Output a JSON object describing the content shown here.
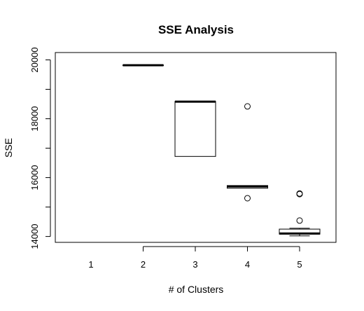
{
  "chart_data": {
    "type": "boxplot",
    "title": "SSE Analysis",
    "xlabel": "# of Clusters",
    "ylabel": "SSE",
    "categories": [
      "1",
      "2",
      "3",
      "4",
      "5"
    ],
    "y_ticks": [
      "14000",
      "16000",
      "18000",
      "20000"
    ],
    "ylim": [
      13800,
      20250
    ],
    "grid": false,
    "boxes": [
      {
        "category": "1",
        "q1": null,
        "median": null,
        "q3": null,
        "whisker_low": null,
        "whisker_high": null,
        "outliers": []
      },
      {
        "category": "2",
        "q1": 19820,
        "median": 19820,
        "q3": 19820,
        "whisker_low": 19820,
        "whisker_high": 19820,
        "outliers": []
      },
      {
        "category": "3",
        "q1": 16720,
        "median": 18580,
        "q3": 18590,
        "whisker_low": 16720,
        "whisker_high": 18590,
        "outliers": []
      },
      {
        "category": "4",
        "q1": 15640,
        "median": 15700,
        "q3": 15730,
        "whisker_low": 15640,
        "whisker_high": 15730,
        "outliers": [
          18420,
          15300
        ]
      },
      {
        "category": "5",
        "q1": 14080,
        "median": 14100,
        "q3": 14250,
        "whisker_low": 14020,
        "whisker_high": 14280,
        "outliers": [
          15460,
          15440,
          14540
        ]
      }
    ]
  }
}
